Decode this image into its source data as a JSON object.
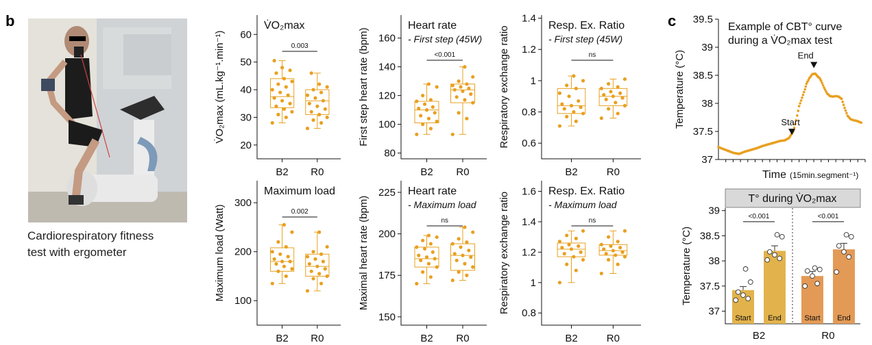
{
  "panel_b_label": "b",
  "panel_c_label": "c",
  "photo": {
    "caption_line1": "Cardiorespiratory fitness",
    "caption_line2": "test with ergometer"
  },
  "colors": {
    "orange": "#e8a020",
    "bar_b2": "#e2b34c",
    "bar_r0": "#e39a56",
    "header_gray": "#d9d9d9"
  },
  "chart_data": [
    {
      "type": "box",
      "title": "V̇O₂max",
      "subtitle": "",
      "ylabel": "V̇O₂max (mL.kg⁻¹.min⁻¹)",
      "ylim": [
        15,
        67
      ],
      "yticks": [
        20,
        30,
        40,
        50,
        60
      ],
      "categories": [
        "B2",
        "R0"
      ],
      "significance": "0.003",
      "boxes": [
        {
          "min": 28,
          "q1": 33.5,
          "median": 37.5,
          "q3": 44,
          "max": 50.5
        },
        {
          "min": 26,
          "q1": 31,
          "median": 36,
          "q3": 40,
          "max": 46
        }
      ],
      "points": [
        [
          28,
          30,
          31,
          32,
          33,
          34,
          35,
          36,
          37,
          38,
          39,
          40,
          41,
          42,
          43,
          44,
          46,
          47,
          48,
          50.5
        ],
        [
          26,
          28,
          29,
          30,
          31,
          32,
          33,
          34,
          35,
          36,
          37,
          38,
          39,
          40,
          41,
          42,
          46
        ]
      ]
    },
    {
      "type": "box",
      "title": "Heart rate",
      "subtitle": "- First step (45W)",
      "ylabel": "First step heart rate (bpm)",
      "ylim": [
        76,
        176
      ],
      "yticks": [
        80,
        100,
        120,
        140,
        160
      ],
      "categories": [
        "B2",
        "R0"
      ],
      "significance": "<0.001",
      "boxes": [
        {
          "min": 93,
          "q1": 101,
          "median": 110,
          "q3": 116,
          "max": 128
        },
        {
          "min": 93,
          "q1": 115,
          "median": 124,
          "q3": 128,
          "max": 140
        }
      ],
      "points": [
        [
          93,
          97,
          100,
          102,
          104,
          106,
          108,
          110,
          111,
          112,
          114,
          116,
          117,
          120,
          126,
          128
        ],
        [
          93,
          104,
          108,
          115,
          117,
          119,
          121,
          123,
          124,
          125,
          126,
          127,
          128,
          130,
          133,
          140
        ]
      ]
    },
    {
      "type": "box",
      "title": "Resp. Ex. Ratio",
      "subtitle": "- First step (45W)",
      "ylabel": "Respiratory exchange ratio",
      "ylim": [
        0.5,
        1.42
      ],
      "yticks": [
        0.6,
        0.8,
        1.0,
        1.2,
        1.4
      ],
      "categories": [
        "B2",
        "R0"
      ],
      "significance": "ns",
      "boxes": [
        {
          "min": 0.71,
          "q1": 0.79,
          "median": 0.84,
          "q3": 0.95,
          "max": 1.03
        },
        {
          "min": 0.76,
          "q1": 0.84,
          "median": 0.9,
          "q3": 0.95,
          "max": 1.01
        }
      ],
      "points": [
        [
          0.71,
          0.74,
          0.77,
          0.79,
          0.8,
          0.82,
          0.83,
          0.84,
          0.85,
          0.87,
          0.9,
          0.92,
          0.95,
          0.97,
          1.0,
          1.03
        ],
        [
          0.76,
          0.79,
          0.82,
          0.84,
          0.86,
          0.88,
          0.89,
          0.9,
          0.91,
          0.92,
          0.93,
          0.95,
          0.96,
          0.98,
          1.01
        ]
      ]
    },
    {
      "type": "box",
      "title": "Maximum load",
      "subtitle": "",
      "ylabel": "Maximum load (Watt)",
      "ylim": [
        50,
        345
      ],
      "yticks": [
        100,
        200,
        300
      ],
      "categories": [
        "B2",
        "R0"
      ],
      "significance": "0.002",
      "boxes": [
        {
          "min": 135,
          "q1": 160,
          "median": 180,
          "q3": 208,
          "max": 255
        },
        {
          "min": 120,
          "q1": 150,
          "median": 170,
          "q3": 195,
          "max": 240
        }
      ],
      "points": [
        [
          135,
          150,
          160,
          165,
          170,
          175,
          180,
          180,
          185,
          190,
          195,
          200,
          210,
          220,
          240,
          255
        ],
        [
          120,
          135,
          145,
          150,
          155,
          160,
          165,
          170,
          175,
          180,
          185,
          190,
          195,
          200,
          210,
          240
        ]
      ]
    },
    {
      "type": "box",
      "title": "Heart rate",
      "subtitle": "- Maximum load",
      "ylabel": "Maximal heart rate (bpm)",
      "ylim": [
        145,
        232
      ],
      "yticks": [
        150,
        175,
        200,
        225
      ],
      "categories": [
        "B2",
        "R0"
      ],
      "significance": "ns",
      "boxes": [
        {
          "min": 170,
          "q1": 180,
          "median": 185,
          "q3": 192,
          "max": 199
        },
        {
          "min": 172,
          "q1": 178,
          "median": 187,
          "q3": 194,
          "max": 204
        }
      ],
      "points": [
        [
          170,
          174,
          177,
          180,
          182,
          184,
          185,
          186,
          187,
          189,
          191,
          192,
          194,
          196,
          198,
          199
        ],
        [
          172,
          175,
          177,
          180,
          182,
          184,
          186,
          187,
          188,
          190,
          192,
          194,
          195,
          197,
          201,
          204
        ]
      ]
    },
    {
      "type": "box",
      "title": "Resp. Ex. Ratio",
      "subtitle": "- Maximum load",
      "ylabel": "Respiratory exchange ratio",
      "ylim": [
        0.72,
        1.67
      ],
      "yticks": [
        0.8,
        1.0,
        1.2,
        1.4,
        1.6
      ],
      "categories": [
        "B2",
        "R0"
      ],
      "significance": "ns",
      "boxes": [
        {
          "min": 1.0,
          "q1": 1.17,
          "median": 1.22,
          "q3": 1.26,
          "max": 1.34
        },
        {
          "min": 1.06,
          "q1": 1.18,
          "median": 1.21,
          "q3": 1.25,
          "max": 1.34
        }
      ],
      "points": [
        [
          1.0,
          1.08,
          1.12,
          1.15,
          1.17,
          1.19,
          1.2,
          1.22,
          1.23,
          1.24,
          1.25,
          1.27,
          1.29,
          1.31,
          1.34
        ],
        [
          1.06,
          1.12,
          1.15,
          1.17,
          1.18,
          1.19,
          1.2,
          1.21,
          1.22,
          1.23,
          1.24,
          1.25,
          1.27,
          1.3,
          1.34
        ]
      ]
    },
    {
      "type": "line",
      "title_line1": "Example of CBT° curve",
      "title_line2": "during a V̇O₂max test",
      "ylabel": "Temperature (°C)",
      "xlabel_main": "Time",
      "xlabel_unit": "(15min.segment⁻¹)",
      "ylim": [
        37.0,
        39.5
      ],
      "yticks": [
        37.0,
        37.5,
        38.0,
        38.5,
        39.0,
        39.5
      ],
      "xlim": [
        0,
        100
      ],
      "x": [
        0,
        5,
        10,
        14,
        18,
        22,
        26,
        30,
        34,
        38,
        42,
        45,
        48,
        51,
        53,
        55,
        57,
        59,
        60,
        62,
        64,
        66,
        67,
        68,
        69,
        70,
        72,
        74,
        76,
        78,
        80,
        82,
        84,
        86,
        88,
        90,
        92,
        94,
        96,
        98
      ],
      "y": [
        37.22,
        37.17,
        37.12,
        37.1,
        37.14,
        37.17,
        37.2,
        37.24,
        37.27,
        37.3,
        37.33,
        37.34,
        37.38,
        37.5,
        37.7,
        37.95,
        38.1,
        38.25,
        38.35,
        38.45,
        38.52,
        38.53,
        38.5,
        38.47,
        38.45,
        38.4,
        38.28,
        38.18,
        38.13,
        38.12,
        38.13,
        38.12,
        38.08,
        37.92,
        37.78,
        37.72,
        37.7,
        37.69,
        37.67,
        37.65
      ],
      "annotations": [
        {
          "text": "Start",
          "x": 51,
          "y": 37.34
        },
        {
          "text": "End",
          "x": 66,
          "y": 38.53
        }
      ]
    },
    {
      "type": "bar",
      "header": "T° during V̇O₂max",
      "ylabel": "Temperature (°C)",
      "ylim": [
        36.75,
        39.05
      ],
      "yticks": [
        37.0,
        37.5,
        38.0,
        38.5,
        39.0
      ],
      "groups": [
        "B2",
        "R0"
      ],
      "bar_labels": [
        "Start",
        "End",
        "Start",
        "End"
      ],
      "values": [
        37.42,
        38.2,
        37.7,
        38.23
      ],
      "errors": [
        0.07,
        0.1,
        0.09,
        0.12
      ],
      "significance": [
        "<0.001",
        "<0.001"
      ],
      "points": [
        [
          37.22,
          37.25,
          37.32,
          37.38,
          37.58,
          37.84
        ],
        [
          38.02,
          38.05,
          38.12,
          38.18,
          38.48,
          38.52
        ],
        [
          37.5,
          37.55,
          37.7,
          37.8,
          37.83,
          37.86
        ],
        [
          37.78,
          38.08,
          38.18,
          38.3,
          38.48,
          38.52
        ]
      ]
    }
  ]
}
